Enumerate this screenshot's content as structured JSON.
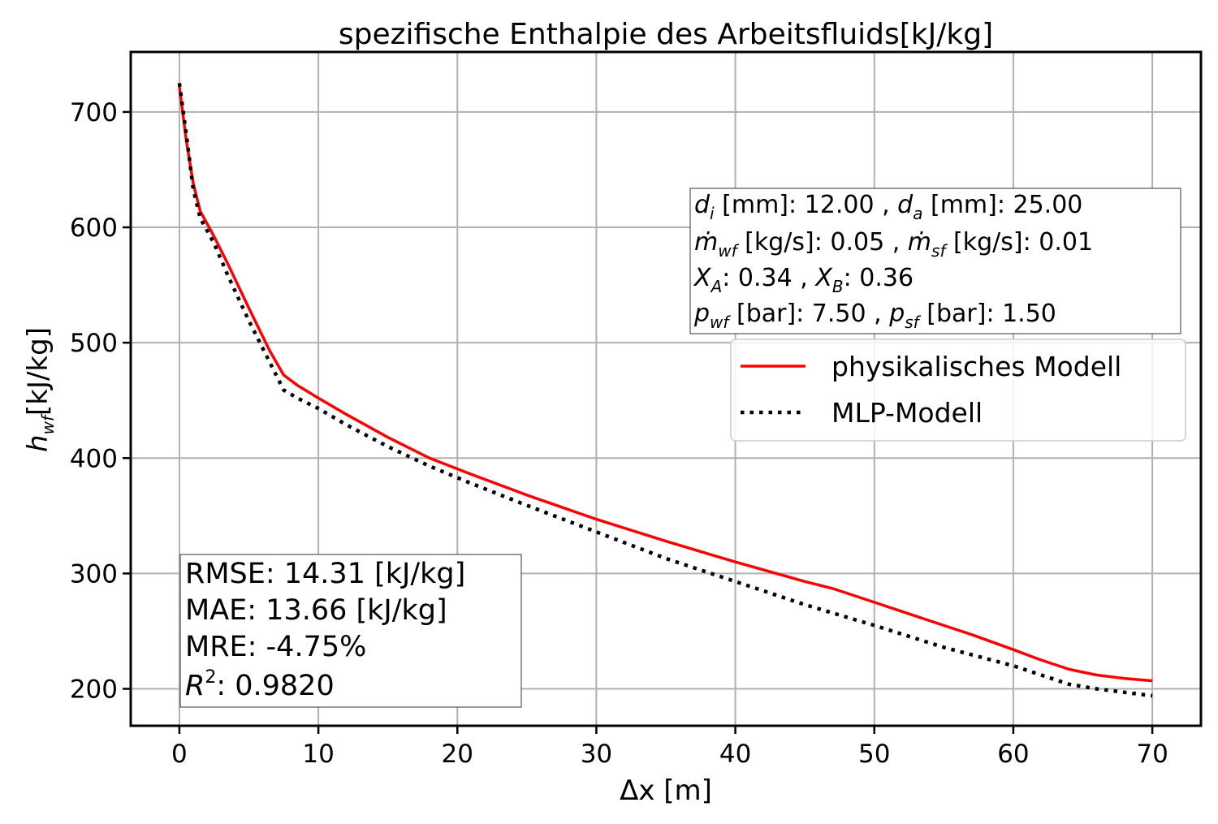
{
  "chart_data": {
    "type": "line",
    "title": "spezifische Enthalpie des Arbeitsfluids[kJ/kg]",
    "xlabel": "Δx [m]",
    "ylabel_main": "h",
    "ylabel_sub": "wf",
    "ylabel_unit": "[kJ/kg]",
    "xlim": [
      -3.5,
      73.5
    ],
    "ylim": [
      168,
      752
    ],
    "xticks": [
      0,
      10,
      20,
      30,
      40,
      50,
      60,
      70
    ],
    "yticks": [
      200,
      300,
      400,
      500,
      600,
      700
    ],
    "grid": true,
    "legend_position": "right",
    "series": [
      {
        "name": "physikalisches Modell",
        "color": "#ff0000",
        "style": "solid",
        "x": [
          0,
          0.5,
          1,
          1.5,
          2.5,
          3.5,
          5,
          6.5,
          7.5,
          8.5,
          10,
          12,
          15,
          18,
          21,
          25,
          30,
          35,
          40,
          45,
          47,
          50,
          52,
          55,
          57,
          60,
          62,
          64,
          66,
          68,
          70
        ],
        "y": [
          722,
          675,
          638,
          614,
          592,
          568,
          530,
          493,
          472,
          463,
          452,
          438,
          418,
          400,
          386,
          368,
          347,
          328,
          310,
          293,
          287,
          275,
          267,
          255,
          247,
          234,
          225,
          217,
          212,
          209,
          207
        ]
      },
      {
        "name": "MLP-Modell",
        "color": "#000000",
        "style": "dotted",
        "x": [
          0,
          0.5,
          1,
          1.5,
          2.5,
          3.5,
          5,
          6.5,
          7.5,
          8.5,
          10,
          12,
          15,
          18,
          21,
          25,
          30,
          35,
          40,
          45,
          50,
          55,
          60,
          62,
          64,
          66,
          68,
          70
        ],
        "y": [
          725,
          680,
          633,
          608,
          586,
          558,
          519,
          483,
          459,
          452,
          443,
          429,
          410,
          393,
          378,
          359,
          336,
          313,
          293,
          273,
          255,
          236,
          220,
          212,
          204,
          200,
          197,
          194
        ]
      }
    ],
    "info_box": {
      "line1": {
        "d_i_label": "d",
        "d_i_sub": "i",
        "d_i_text": " [mm]: 12.00 , ",
        "d_a_label": "d",
        "d_a_sub": "a",
        "d_a_text": " [mm]: 25.00"
      },
      "line2": {
        "mwf_label": "ṁ",
        "mwf_sub": "wf",
        "mwf_text": " [kg/s]: 0.05 , ",
        "msf_label": "ṁ",
        "msf_sub": "sf",
        "msf_text": " [kg/s]: 0.01"
      },
      "line3": {
        "xa_label": "X",
        "xa_sub": "A",
        "xa_text": ": 0.34 , ",
        "xb_label": "X",
        "xb_sub": "B",
        "xb_text": ": 0.36"
      },
      "line4": {
        "pwf_label": "p",
        "pwf_sub": "wf",
        "pwf_text": " [bar]: 7.50 , ",
        "psf_label": "p",
        "psf_sub": "sf",
        "psf_text": " [bar]: 1.50"
      }
    },
    "metrics_box": {
      "rmse": "RMSE: 14.31 [kJ/kg]",
      "mae": "MAE: 13.66 [kJ/kg]",
      "mre": "MRE: -4.75%",
      "r2_label": "R",
      "r2_sup": "2",
      "r2_value": ": 0.9820"
    }
  }
}
